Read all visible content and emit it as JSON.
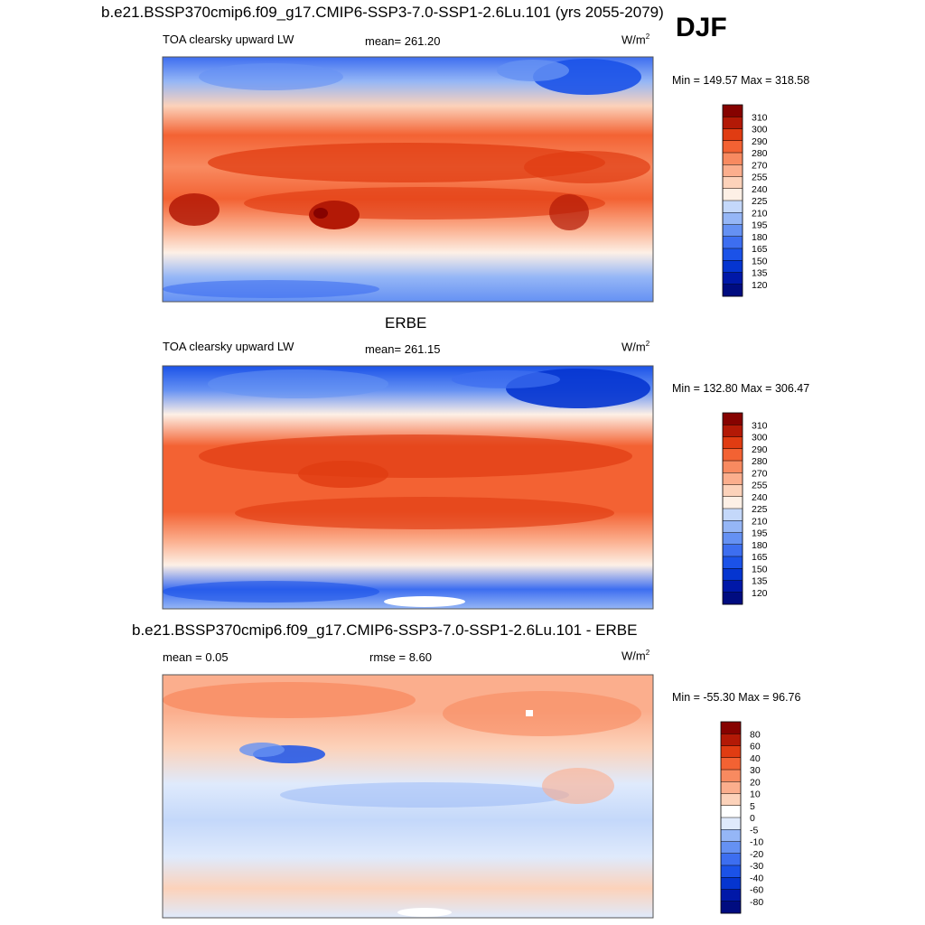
{
  "header": {
    "title": "b.e21.BSSP370cmip6.f09_g17.CMIP6-SSP3-7.0-SSP1-2.6Lu.101 (yrs 2055-2079)",
    "season": "DJF"
  },
  "panel1": {
    "variable": "TOA clearsky upward LW",
    "mean": "mean= 261.20",
    "units_base": "W/m",
    "units_exp": "2",
    "minmax": "Min = 149.57 Max = 318.58"
  },
  "panel2": {
    "title": "ERBE",
    "variable": "TOA clearsky upward LW",
    "mean": "mean= 261.15",
    "units_base": "W/m",
    "units_exp": "2",
    "minmax": "Min = 132.80 Max = 306.47"
  },
  "panel3": {
    "title": "b.e21.BSSP370cmip6.f09_g17.CMIP6-SSP3-7.0-SSP1-2.6Lu.101 - ERBE",
    "mean": "mean =   0.05",
    "rmse": "rmse =   8.60",
    "units_base": "W/m",
    "units_exp": "2",
    "minmax": "Min = -55.30 Max =  96.76"
  },
  "chart_data": [
    {
      "type": "heatmap",
      "title": "TOA clearsky upward LW",
      "mean": 261.2,
      "min": 149.57,
      "max": 318.58,
      "units": "W/m2",
      "colorbar": {
        "levels": [
          120,
          135,
          150,
          165,
          180,
          195,
          210,
          225,
          240,
          255,
          270,
          280,
          290,
          300,
          310
        ],
        "colors": [
          "#000c80",
          "#0018a8",
          "#0535d0",
          "#1b52e8",
          "#3d6ef0",
          "#6591f3",
          "#95b6f6",
          "#c4d8fa",
          "#fdf0e6",
          "#fcd2ba",
          "#fbae8d",
          "#f88a60",
          "#f36233",
          "#e03c12",
          "#b31906",
          "#860200"
        ]
      }
    },
    {
      "type": "heatmap",
      "title": "ERBE",
      "mean": 261.15,
      "min": 132.8,
      "max": 306.47,
      "units": "W/m2",
      "colorbar": {
        "levels": [
          120,
          135,
          150,
          165,
          180,
          195,
          210,
          225,
          240,
          255,
          270,
          280,
          290,
          300,
          310
        ],
        "colors": [
          "#000c80",
          "#0018a8",
          "#0535d0",
          "#1b52e8",
          "#3d6ef0",
          "#6591f3",
          "#95b6f6",
          "#c4d8fa",
          "#fdf0e6",
          "#fcd2ba",
          "#fbae8d",
          "#f88a60",
          "#f36233",
          "#e03c12",
          "#b31906",
          "#860200"
        ]
      }
    },
    {
      "type": "heatmap",
      "title": "b.e21.BSSP370cmip6.f09_g17.CMIP6-SSP3-7.0-SSP1-2.6Lu.101 - ERBE",
      "mean": 0.05,
      "rmse": 8.6,
      "min": -55.3,
      "max": 96.76,
      "units": "W/m2",
      "colorbar": {
        "levels": [
          -80,
          -60,
          -40,
          -30,
          -20,
          -10,
          -5,
          0,
          5,
          10,
          20,
          30,
          40,
          60,
          80
        ],
        "colors": [
          "#000c80",
          "#0018a8",
          "#0535d0",
          "#1b52e8",
          "#3d6ef0",
          "#6591f3",
          "#95b6f6",
          "#dfeafc",
          "#ffffff",
          "#fcd2ba",
          "#fbae8d",
          "#f88a60",
          "#f36233",
          "#e03c12",
          "#b31906",
          "#860200"
        ]
      }
    }
  ]
}
